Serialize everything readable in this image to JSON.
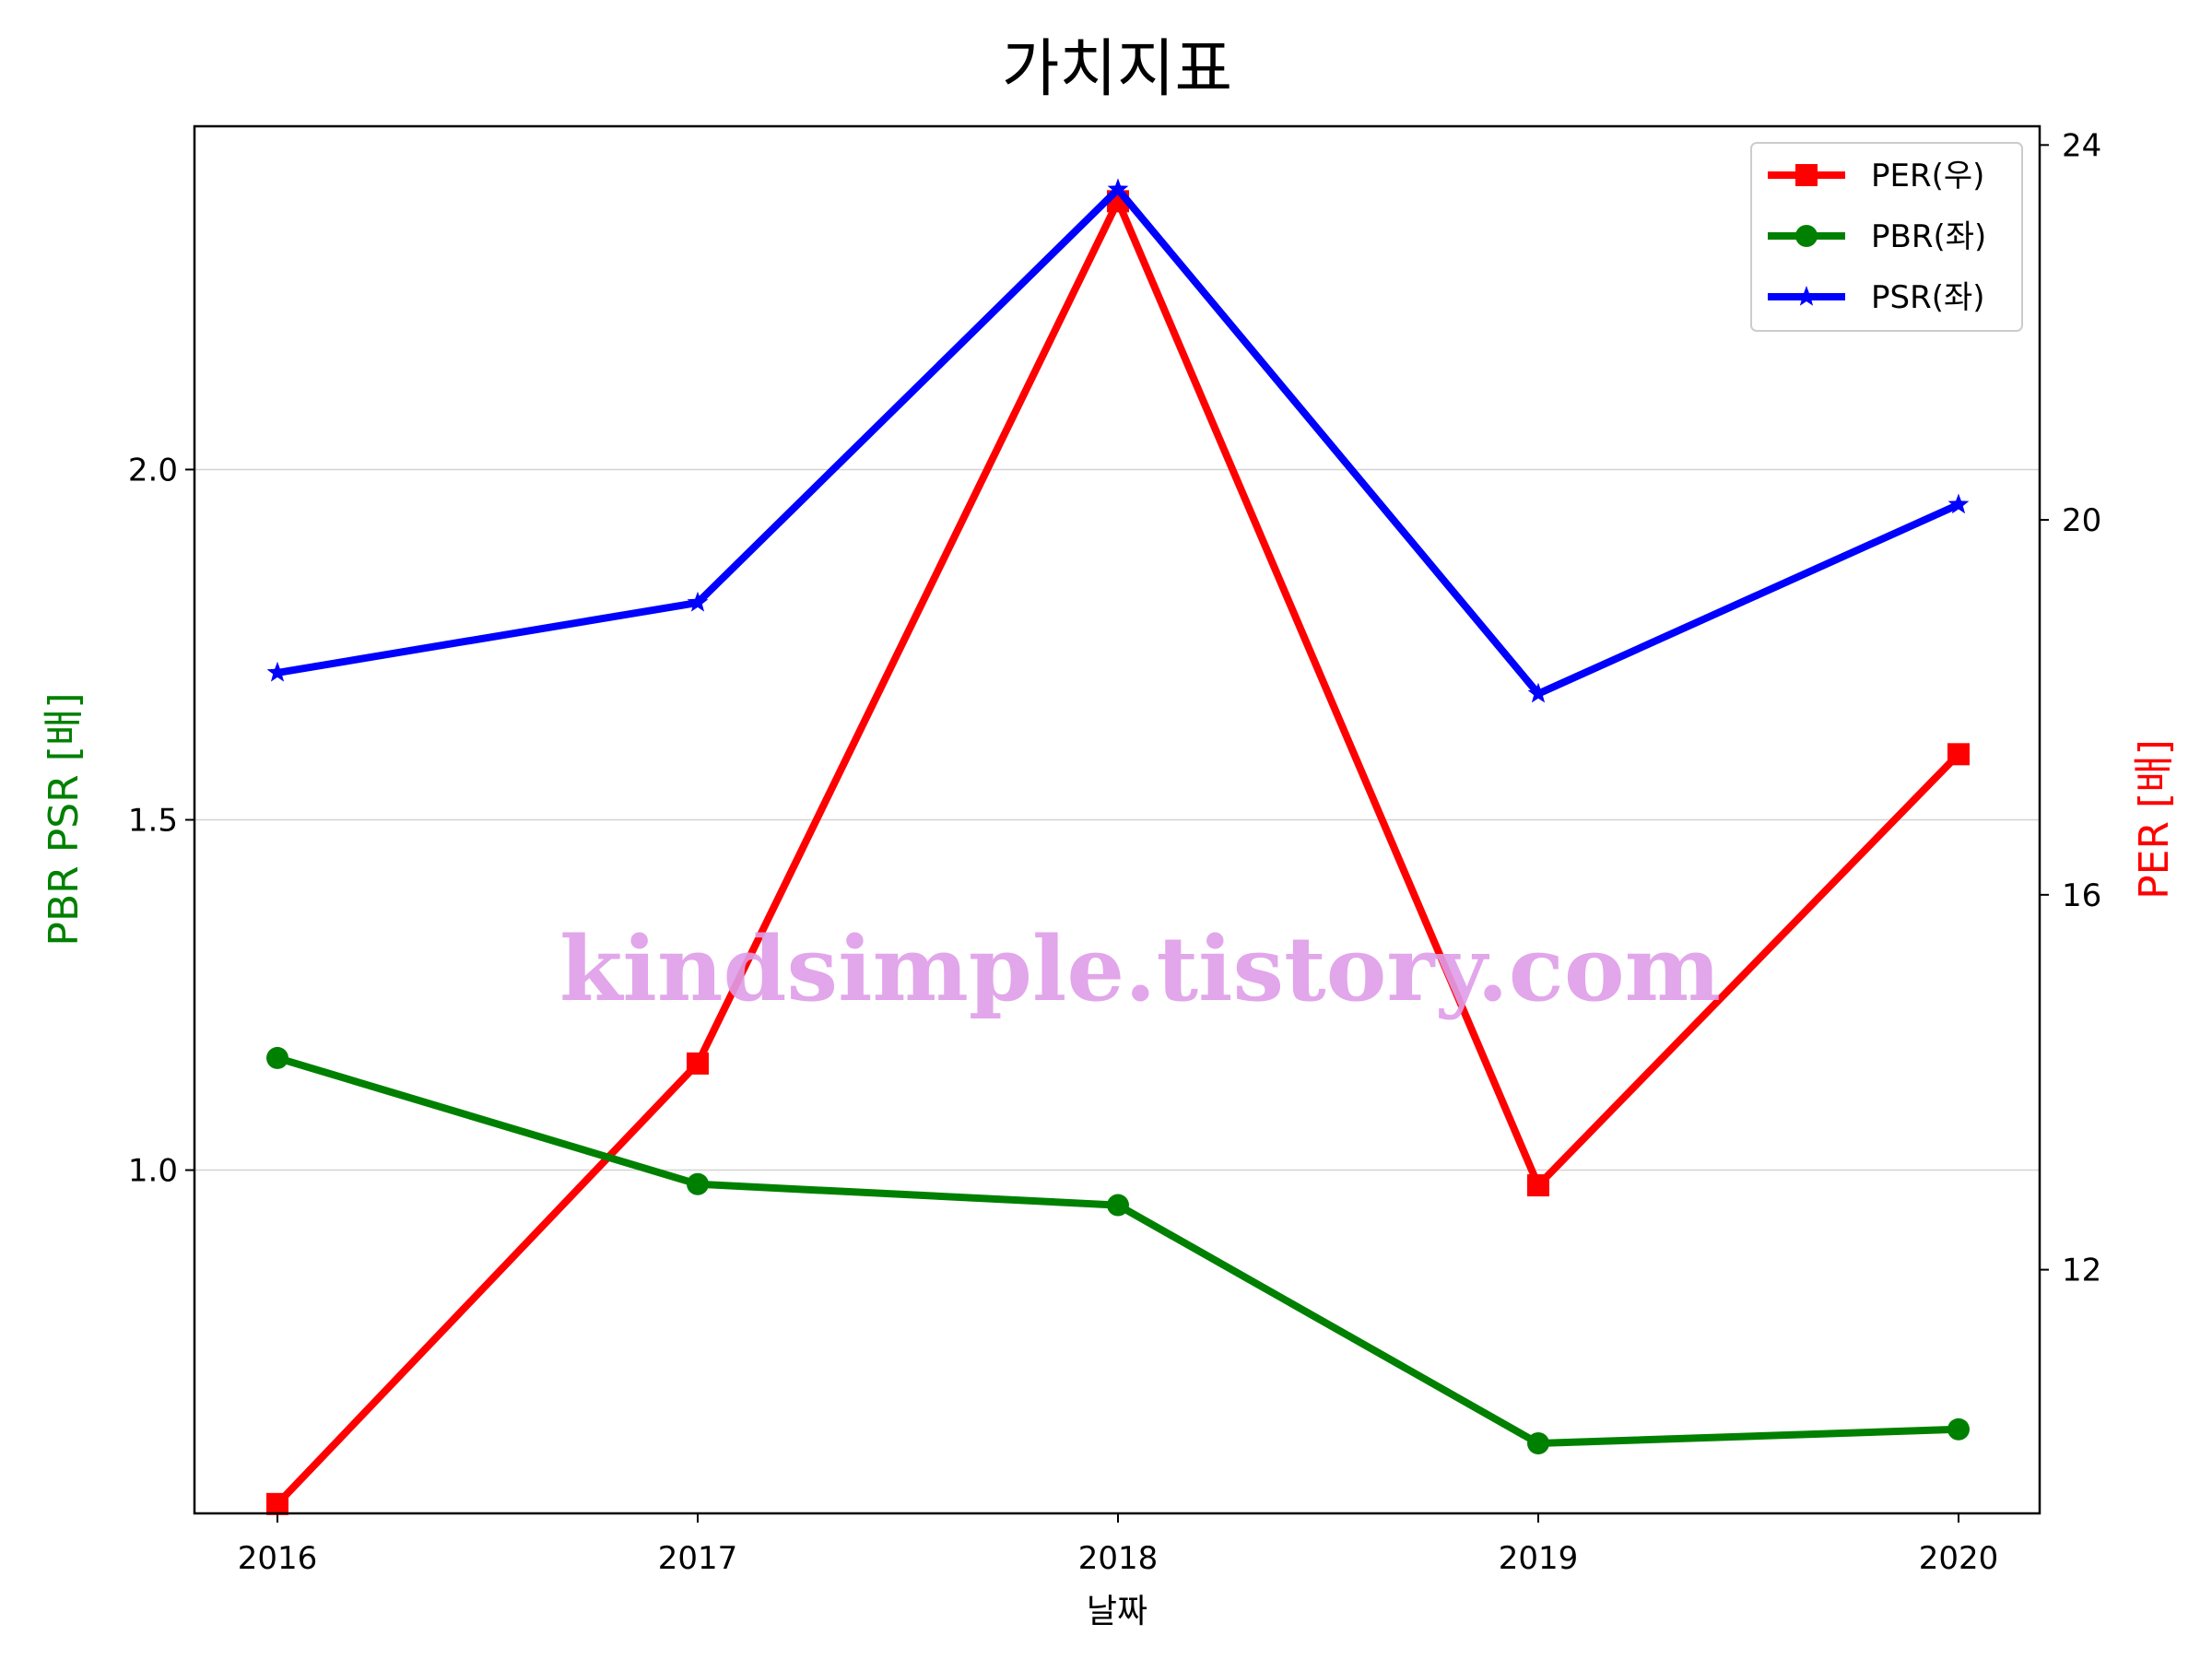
{
  "chart_data": {
    "type": "line",
    "title": "가치지표",
    "xlabel": "날짜",
    "ylabel_left": "PBR PSR [배]",
    "ylabel_right": "PER [배]",
    "watermark": "kindsimple.tistory.com",
    "categories": [
      "2016",
      "2017",
      "2018",
      "2019",
      "2020"
    ],
    "ylim_left": [
      0.51,
      2.49
    ],
    "ylim_right": [
      9.4,
      24.2
    ],
    "yticks_left": [
      "1.0",
      "1.5",
      "2.0"
    ],
    "yticks_right": [
      "12",
      "16",
      "20",
      "24"
    ],
    "grid": "horizontal-left",
    "legend_position": "top-right",
    "series": [
      {
        "name": "PER(우)",
        "axis": "right",
        "marker": "square",
        "color": "#ff0000",
        "values": [
          9.5,
          14.2,
          23.4,
          12.9,
          17.5
        ]
      },
      {
        "name": "PBR(좌)",
        "axis": "left",
        "marker": "circle",
        "color": "#008000",
        "values": [
          1.16,
          0.98,
          0.95,
          0.61,
          0.63
        ]
      },
      {
        "name": "PSR(좌)",
        "axis": "left",
        "marker": "star",
        "color": "#0000ff",
        "values": [
          1.71,
          1.81,
          2.4,
          1.68,
          1.95
        ]
      }
    ]
  }
}
